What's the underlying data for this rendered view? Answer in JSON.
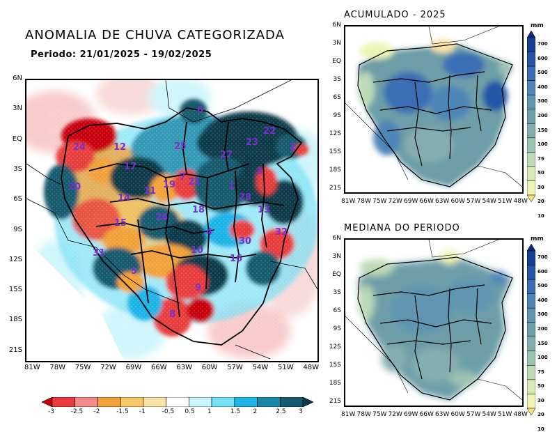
{
  "main_map": {
    "title": "ANOMALIA DE CHUVA CATEGORIZADA",
    "period": "Periodo: 21/01/2025 - 19/02/2025",
    "lat_labels": [
      "6N",
      "3N",
      "EQ",
      "3S",
      "6S",
      "9S",
      "12S",
      "15S",
      "18S",
      "21S"
    ],
    "lon_labels": [
      "81W",
      "78W",
      "75W",
      "72W",
      "69W",
      "66W",
      "63W",
      "60W",
      "57W",
      "54W",
      "51W",
      "48W"
    ],
    "colorbar": {
      "labels": [
        "-3",
        "-2.5",
        "-2",
        "-1.5",
        "-1",
        "-0.5",
        "0.5",
        "1",
        "1.5",
        "2",
        "2.5",
        "3"
      ],
      "colors": [
        "#c8000a",
        "#e83c3c",
        "#f28a8a",
        "#f2a23a",
        "#f7c866",
        "#fbe4a8",
        "#ffffff",
        "#c8f4fa",
        "#78e0f5",
        "#1eb4e6",
        "#1a86a8",
        "#155a6e",
        "#0b3b4a"
      ]
    },
    "basins": [
      {
        "id": "6"
      },
      {
        "id": "12"
      },
      {
        "id": "25"
      },
      {
        "id": "23"
      },
      {
        "id": "22"
      },
      {
        "id": "24"
      },
      {
        "id": "17"
      },
      {
        "id": "27"
      },
      {
        "id": "3"
      },
      {
        "id": "2"
      },
      {
        "id": "20"
      },
      {
        "id": "14"
      },
      {
        "id": "11"
      },
      {
        "id": "19"
      },
      {
        "id": "21"
      },
      {
        "id": "1"
      },
      {
        "id": "28"
      },
      {
        "id": "13"
      },
      {
        "id": "18"
      },
      {
        "id": "15"
      },
      {
        "id": "26"
      },
      {
        "id": "4"
      },
      {
        "id": "32"
      },
      {
        "id": "30"
      },
      {
        "id": "10"
      },
      {
        "id": "16"
      },
      {
        "id": "31"
      },
      {
        "id": "5"
      },
      {
        "id": "9"
      },
      {
        "id": "8"
      },
      {
        "id": "7"
      }
    ]
  },
  "right_top": {
    "title": "ACUMULADO - 2025",
    "units": "mm"
  },
  "right_bottom": {
    "title": "MEDIANA DO PERIODO",
    "units": "mm"
  },
  "right_lat_labels": [
    "6N",
    "3N",
    "EQ",
    "3S",
    "6S",
    "9S",
    "12S",
    "15S",
    "18S",
    "21S"
  ],
  "right_lon_labels": [
    "81W",
    "78W",
    "75W",
    "72W",
    "69W",
    "66W",
    "63W",
    "60W",
    "57W",
    "54W",
    "51W",
    "48W"
  ],
  "mm_colorbar": {
    "labels": [
      "700",
      "600",
      "500",
      "400",
      "300",
      "200",
      "150",
      "100",
      "75",
      "50",
      "30",
      "20",
      "10"
    ],
    "colors": [
      "#0b2a78",
      "#163f94",
      "#2456a6",
      "#3a6eb4",
      "#4f86b8",
      "#5e95b0",
      "#6d9ea8",
      "#84aeae",
      "#9cc2b2",
      "#bcdab6",
      "#d6eab6",
      "#eef5b4",
      "#f8e07a"
    ]
  }
}
